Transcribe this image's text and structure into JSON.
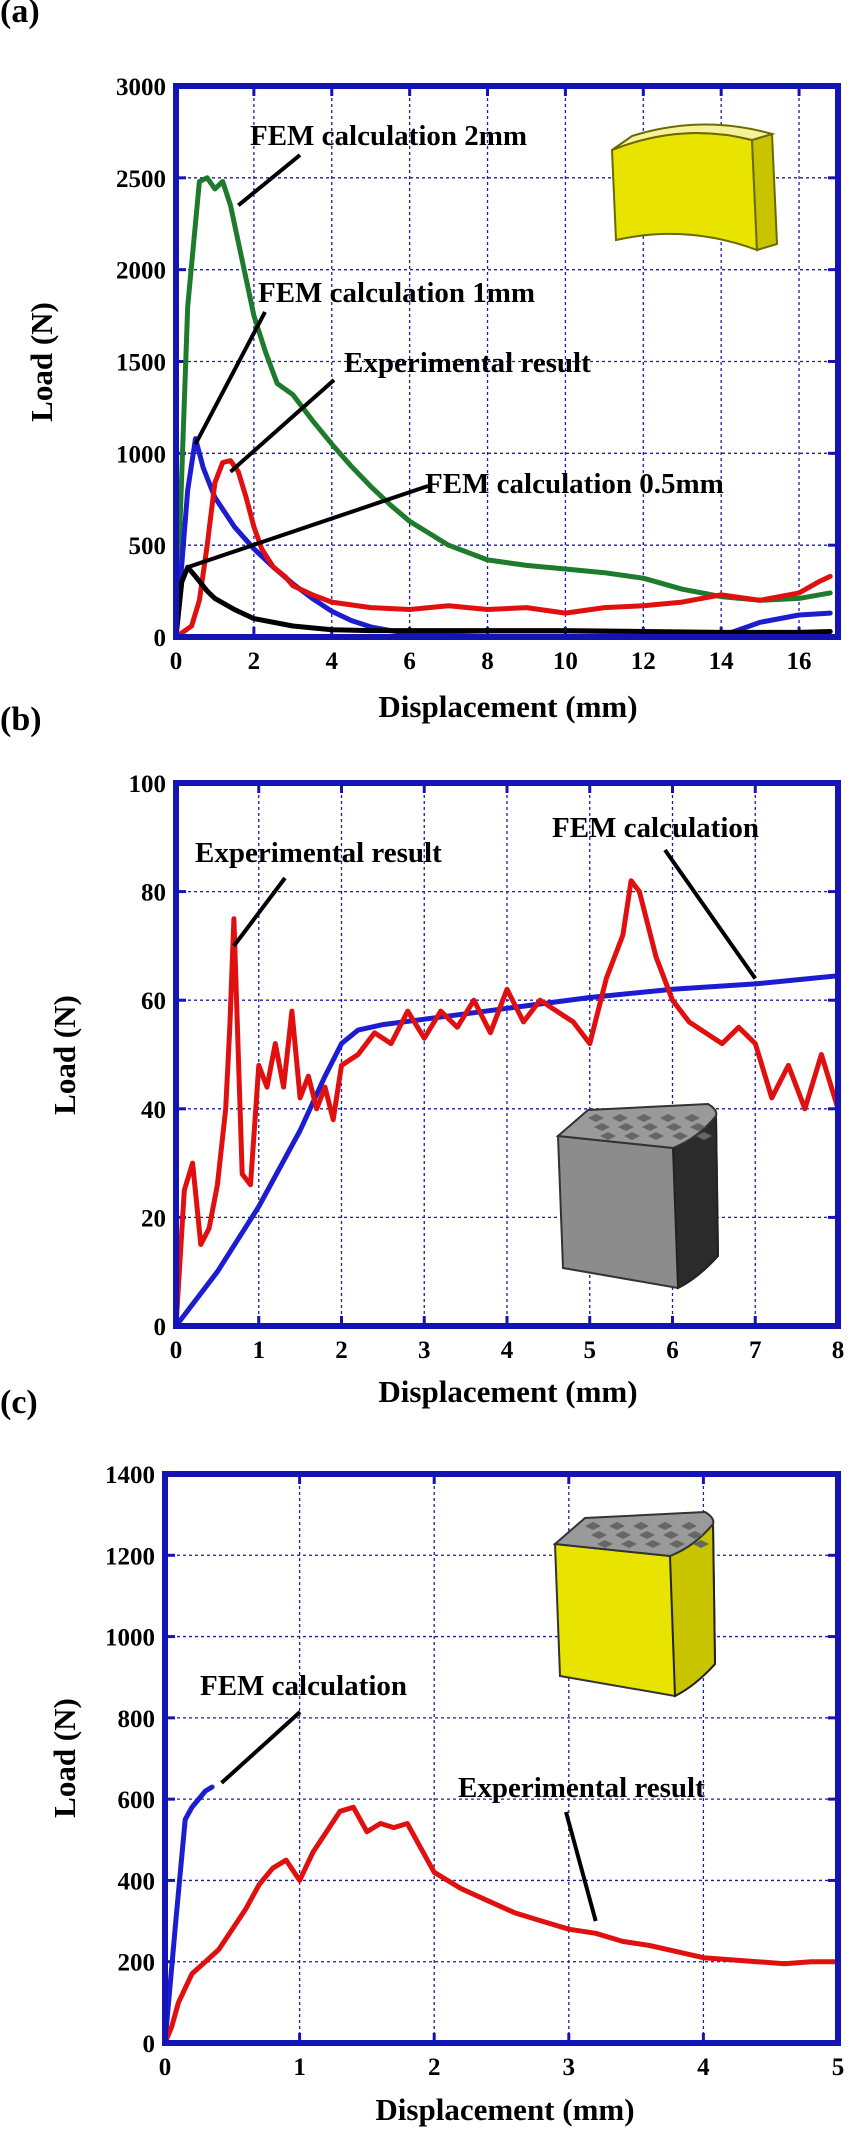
{
  "colors": {
    "frame": "#1414b4",
    "grid": "#1c1ca8",
    "red": "#e01010",
    "blue": "#1c1cd0",
    "green": "#1e7a2c",
    "black": "#000000",
    "yellow": "#e8e400",
    "gray": "#8a8a8a"
  },
  "chart_data": [
    {
      "panel_label": "(a)",
      "type": "line",
      "xlabel": "Displacement (mm)",
      "ylabel": "Load (N)",
      "xlim": [
        0,
        17
      ],
      "ylim": [
        0,
        3000
      ],
      "xticks": [
        0,
        2,
        4,
        6,
        8,
        10,
        12,
        14,
        16
      ],
      "yticks": [
        0,
        500,
        1000,
        1500,
        2000,
        2500,
        3000
      ],
      "grid": true,
      "inset_icon": "yellow-shell-sector",
      "series": [
        {
          "name": "FEM calculation 2mm",
          "color": "#1e7a2c",
          "x": [
            0,
            0.3,
            0.6,
            0.8,
            1.0,
            1.2,
            1.4,
            1.6,
            1.8,
            2.0,
            2.3,
            2.6,
            3.0,
            3.5,
            4.0,
            4.5,
            5.0,
            5.5,
            6.0,
            7.0,
            8.0,
            9.0,
            10.0,
            11.0,
            12.0,
            13.0,
            14.0,
            15.0,
            16.0,
            16.8
          ],
          "y": [
            0,
            1800,
            2480,
            2500,
            2440,
            2480,
            2350,
            2150,
            1950,
            1750,
            1550,
            1380,
            1320,
            1180,
            1050,
            930,
            820,
            720,
            630,
            500,
            420,
            390,
            370,
            350,
            320,
            260,
            220,
            200,
            210,
            240
          ]
        },
        {
          "name": "FEM calculation 1mm",
          "color": "#1c1cd0",
          "x": [
            0,
            0.3,
            0.5,
            0.7,
            1.0,
            1.5,
            2.0,
            2.5,
            3.0,
            3.5,
            4.0,
            4.5,
            5.0,
            5.5,
            6.0,
            7.0,
            8.0,
            10.0,
            12.0,
            14.0,
            15.0,
            16.0,
            16.8
          ],
          "y": [
            0,
            800,
            1080,
            920,
            760,
            600,
            480,
            380,
            290,
            210,
            140,
            90,
            55,
            35,
            20,
            10,
            5,
            5,
            5,
            5,
            80,
            120,
            130
          ]
        },
        {
          "name": "Experimental result",
          "color": "#e01010",
          "x": [
            0,
            0.4,
            0.6,
            0.8,
            1.0,
            1.2,
            1.4,
            1.6,
            1.8,
            2.0,
            2.2,
            2.5,
            2.8,
            3.0,
            3.5,
            4.0,
            5.0,
            6.0,
            7.0,
            8.0,
            9.0,
            10.0,
            11.0,
            12.0,
            13.0,
            14.0,
            15.0,
            16.0,
            16.5,
            16.8
          ],
          "y": [
            0,
            60,
            200,
            500,
            840,
            950,
            960,
            900,
            760,
            600,
            480,
            380,
            330,
            280,
            230,
            190,
            160,
            150,
            170,
            150,
            160,
            130,
            160,
            170,
            190,
            230,
            200,
            240,
            300,
            330
          ]
        },
        {
          "name": "FEM calculation 0.5mm",
          "color": "#000000",
          "x": [
            0,
            0.15,
            0.3,
            0.5,
            0.8,
            1.0,
            1.5,
            2.0,
            3.0,
            4.0,
            5.0,
            6.0,
            8.0,
            10.0,
            12.0,
            14.0,
            16.0,
            16.8
          ],
          "y": [
            0,
            300,
            380,
            330,
            250,
            210,
            150,
            100,
            60,
            40,
            35,
            35,
            35,
            35,
            30,
            25,
            25,
            30
          ]
        }
      ],
      "annotations": [
        {
          "text": "FEM calculation 2mm",
          "series": "FEM calculation 2mm",
          "target_x": 1.6,
          "target_y": 2350
        },
        {
          "text": "FEM calculation 1mm",
          "series": "FEM calculation 1mm",
          "target_x": 0.5,
          "target_y": 1050
        },
        {
          "text": "Experimental result",
          "series": "Experimental result",
          "target_x": 1.4,
          "target_y": 900
        },
        {
          "text": "FEM calculation 0.5mm",
          "series": "FEM calculation 0.5mm",
          "target_x": 0.3,
          "target_y": 380
        }
      ]
    },
    {
      "panel_label": "(b)",
      "type": "line",
      "xlabel": "Displacement (mm)",
      "ylabel": "Load (N)",
      "xlim": [
        0,
        8
      ],
      "ylim": [
        0,
        100
      ],
      "xticks": [
        0,
        1,
        2,
        3,
        4,
        5,
        6,
        7,
        8
      ],
      "yticks": [
        0,
        20,
        40,
        60,
        80,
        100
      ],
      "grid": true,
      "inset_icon": "gray-honeycomb-sector",
      "series": [
        {
          "name": "FEM calculation",
          "color": "#1c1cd0",
          "x": [
            0,
            0.5,
            1.0,
            1.5,
            1.8,
            2.0,
            2.2,
            2.5,
            3.0,
            3.5,
            4.0,
            5.0,
            6.0,
            7.0,
            8.0
          ],
          "y": [
            0,
            10,
            22,
            36,
            46,
            52,
            54.5,
            55.5,
            56.5,
            57.5,
            58.5,
            60.5,
            62,
            63,
            64.5
          ]
        },
        {
          "name": "Experimental result",
          "color": "#e01010",
          "x": [
            0,
            0.1,
            0.2,
            0.3,
            0.4,
            0.5,
            0.6,
            0.65,
            0.7,
            0.8,
            0.9,
            1.0,
            1.1,
            1.2,
            1.3,
            1.4,
            1.5,
            1.6,
            1.7,
            1.8,
            1.9,
            2.0,
            2.2,
            2.4,
            2.6,
            2.8,
            3.0,
            3.2,
            3.4,
            3.6,
            3.8,
            4.0,
            4.2,
            4.4,
            4.6,
            4.8,
            5.0,
            5.2,
            5.4,
            5.5,
            5.6,
            5.8,
            6.0,
            6.2,
            6.4,
            6.6,
            6.8,
            7.0,
            7.2,
            7.4,
            7.6,
            7.8,
            8.0
          ],
          "y": [
            0,
            25,
            30,
            15,
            18,
            26,
            40,
            55,
            75,
            28,
            26,
            48,
            44,
            52,
            44,
            58,
            42,
            46,
            40,
            44,
            38,
            48,
            50,
            54,
            52,
            58,
            53,
            58,
            55,
            60,
            54,
            62,
            56,
            60,
            58,
            56,
            52,
            64,
            72,
            82,
            80,
            68,
            60,
            56,
            54,
            52,
            55,
            52,
            42,
            48,
            40,
            50,
            40
          ]
        }
      ],
      "annotations": [
        {
          "text": "Experimental result",
          "series": "Experimental result",
          "target_x": 0.7,
          "target_y": 70
        },
        {
          "text": "FEM calculation",
          "series": "FEM calculation",
          "target_x": 7.0,
          "target_y": 64
        }
      ]
    },
    {
      "panel_label": "(c)",
      "type": "line",
      "xlabel": "Displacement (mm)",
      "ylabel": "Load (N)",
      "xlim": [
        0,
        5
      ],
      "ylim": [
        0,
        1400
      ],
      "xticks": [
        0,
        1,
        2,
        3,
        4,
        5
      ],
      "yticks": [
        0,
        200,
        400,
        600,
        800,
        1000,
        1200,
        1400
      ],
      "grid": true,
      "inset_icon": "yellow-honeycomb-sector",
      "series": [
        {
          "name": "FEM calculation",
          "color": "#1c1cd0",
          "x": [
            0,
            0.08,
            0.15,
            0.2,
            0.25,
            0.3,
            0.35
          ],
          "y": [
            0,
            300,
            550,
            580,
            600,
            620,
            630
          ]
        },
        {
          "name": "Experimental result",
          "color": "#e01010",
          "x": [
            0,
            0.05,
            0.1,
            0.2,
            0.3,
            0.4,
            0.5,
            0.6,
            0.7,
            0.8,
            0.9,
            1.0,
            1.1,
            1.2,
            1.3,
            1.4,
            1.5,
            1.6,
            1.7,
            1.8,
            1.9,
            2.0,
            2.2,
            2.4,
            2.6,
            2.8,
            3.0,
            3.2,
            3.4,
            3.6,
            3.8,
            4.0,
            4.2,
            4.4,
            4.6,
            4.8,
            5.0
          ],
          "y": [
            0,
            40,
            100,
            170,
            200,
            230,
            280,
            330,
            390,
            430,
            450,
            400,
            470,
            520,
            570,
            580,
            520,
            540,
            530,
            540,
            480,
            420,
            380,
            350,
            320,
            300,
            280,
            270,
            250,
            240,
            225,
            210,
            205,
            200,
            195,
            200,
            200
          ]
        }
      ],
      "annotations": [
        {
          "text": "FEM calculation",
          "series": "FEM calculation",
          "target_x": 0.42,
          "target_y": 640
        },
        {
          "text": "Experimental result",
          "series": "Experimental result",
          "target_x": 3.2,
          "target_y": 300
        }
      ]
    }
  ]
}
